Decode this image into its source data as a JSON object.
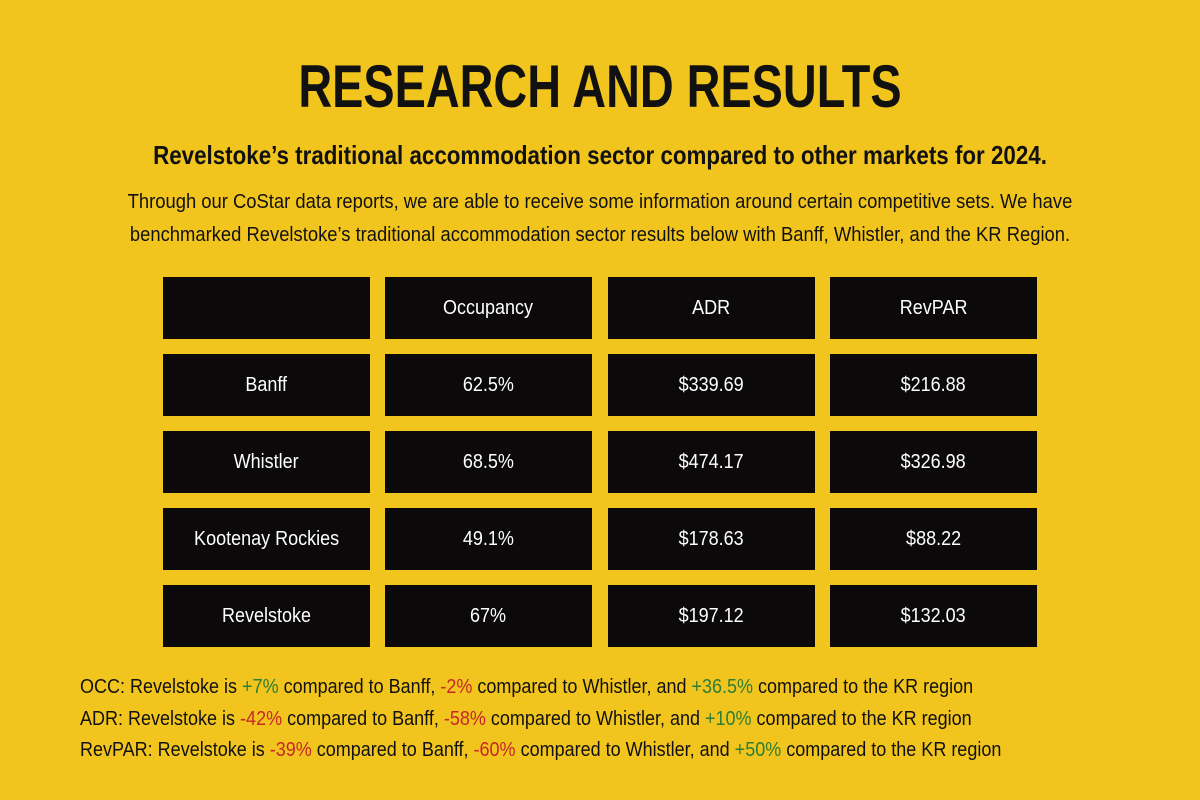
{
  "title": "RESEARCH AND RESULTS",
  "subtitle": "Revelstoke’s traditional accommodation sector compared to other markets for 2024.",
  "intro": {
    "line1": "Through our CoStar data reports, we are able to receive some information around certain competitive sets. We have",
    "line2": "benchmarked Revelstoke’s traditional accommodation sector results below with Banff, Whistler, and the KR Region."
  },
  "table": {
    "headers": [
      "",
      "Occupancy",
      "ADR",
      "RevPAR"
    ],
    "rows": [
      [
        "Banff",
        "62.5%",
        "$339.69",
        "$216.88"
      ],
      [
        "Whistler",
        "68.5%",
        "$474.17",
        "$326.98"
      ],
      [
        "Kootenay Rockies",
        "49.1%",
        "$178.63",
        "$88.22"
      ],
      [
        "Revelstoke",
        "67%",
        "$197.12",
        "$132.03"
      ]
    ]
  },
  "notes": [
    {
      "prefix": "OCC: Revelstoke is ",
      "v1": "+7%",
      "mid1": " compared to Banff, ",
      "v2": "-2%",
      "mid2": " compared to Whistler, and ",
      "v3": "+36.5%",
      "suffix": " compared to the KR region"
    },
    {
      "prefix": "ADR: Revelstoke is ",
      "v1": "-42%",
      "mid1": " compared to Banff, ",
      "v2": "-58%",
      "mid2": " compared to Whistler, and ",
      "v3": "+10%",
      "suffix": " compared to the KR region"
    },
    {
      "prefix": "RevPAR: Revelstoke is ",
      "v1": "-39%",
      "mid1": " compared to Banff, ",
      "v2": "-60%",
      "mid2": " compared to Whistler, and ",
      "v3": "+50%",
      "suffix": " compared to the KR region"
    }
  ],
  "colors": {
    "background": "#F2C51E",
    "cell": "#0B0909",
    "positive": "#2E7D32",
    "negative": "#C62828"
  }
}
